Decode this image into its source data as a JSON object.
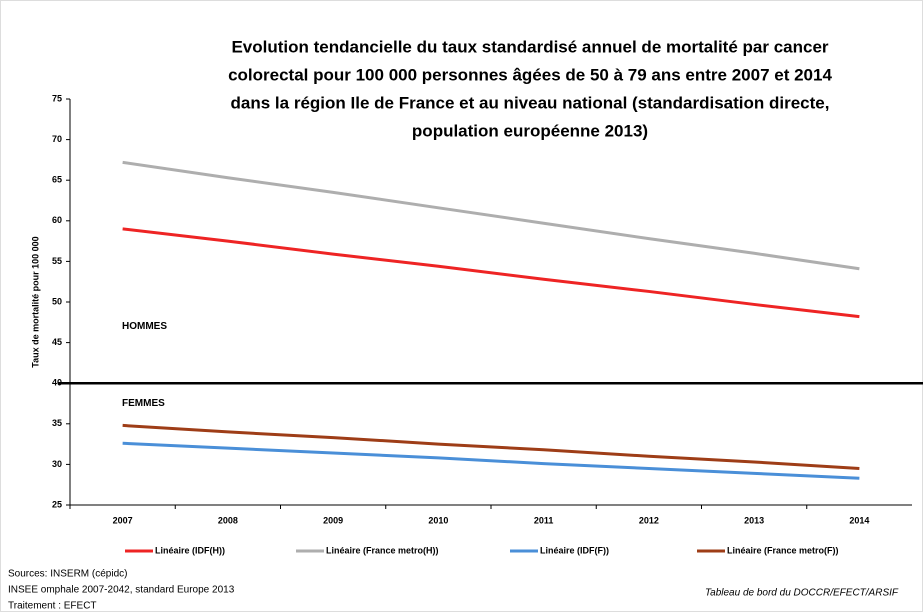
{
  "chart_data": {
    "type": "line",
    "title": [
      "Evolution tendancielle du taux standardisé annuel de mortalité par cancer",
      "colorectal  pour 100 000 personnes âgées de 50 à 79 ans entre 2007 et 2014",
      "dans la région Ile de France et au niveau national (standardisation directe,",
      "population européenne 2013)"
    ],
    "y_label": "Taux de mortalité pour 100 000",
    "categories": [
      "2007",
      "2008",
      "2009",
      "2010",
      "2011",
      "2012",
      "2013",
      "2014"
    ],
    "series": [
      {
        "name": "Linéaire (IDF(H))",
        "color": "#ee2424",
        "values": [
          59.0,
          57.5,
          55.9,
          54.4,
          52.8,
          51.3,
          49.7,
          48.2
        ]
      },
      {
        "name": "Linéaire (France metro(H))",
        "color": "#aeaeae",
        "values": [
          67.2,
          65.3,
          63.5,
          61.6,
          59.7,
          57.8,
          56.0,
          54.1
        ]
      },
      {
        "name": "Linéaire (IDF(F))",
        "color": "#4a8fd8",
        "values": [
          32.6,
          32.0,
          31.4,
          30.8,
          30.1,
          29.5,
          28.9,
          28.3
        ]
      },
      {
        "name": "Linéaire (France metro(F))",
        "color": "#9e3d17",
        "values": [
          34.8,
          34.0,
          33.3,
          32.5,
          31.8,
          31.0,
          30.3,
          29.5
        ]
      }
    ],
    "ylim": [
      25,
      75
    ],
    "yticks": [
      25,
      30,
      35,
      40,
      45,
      50,
      55,
      60,
      65,
      70,
      75
    ],
    "reference_line": 40,
    "annotations": [
      {
        "text": "HOMMES",
        "y": 47
      },
      {
        "text": "FEMMES",
        "y": 37.5
      }
    ],
    "sources": [
      "Sources: INSERM (cépidc)",
      " INSEE omphale 2007-2042, standard Europe 2013",
      "Traitement : EFECT"
    ],
    "credit": "Tableau de bord du DOCCR/EFECT/ARSIF"
  }
}
